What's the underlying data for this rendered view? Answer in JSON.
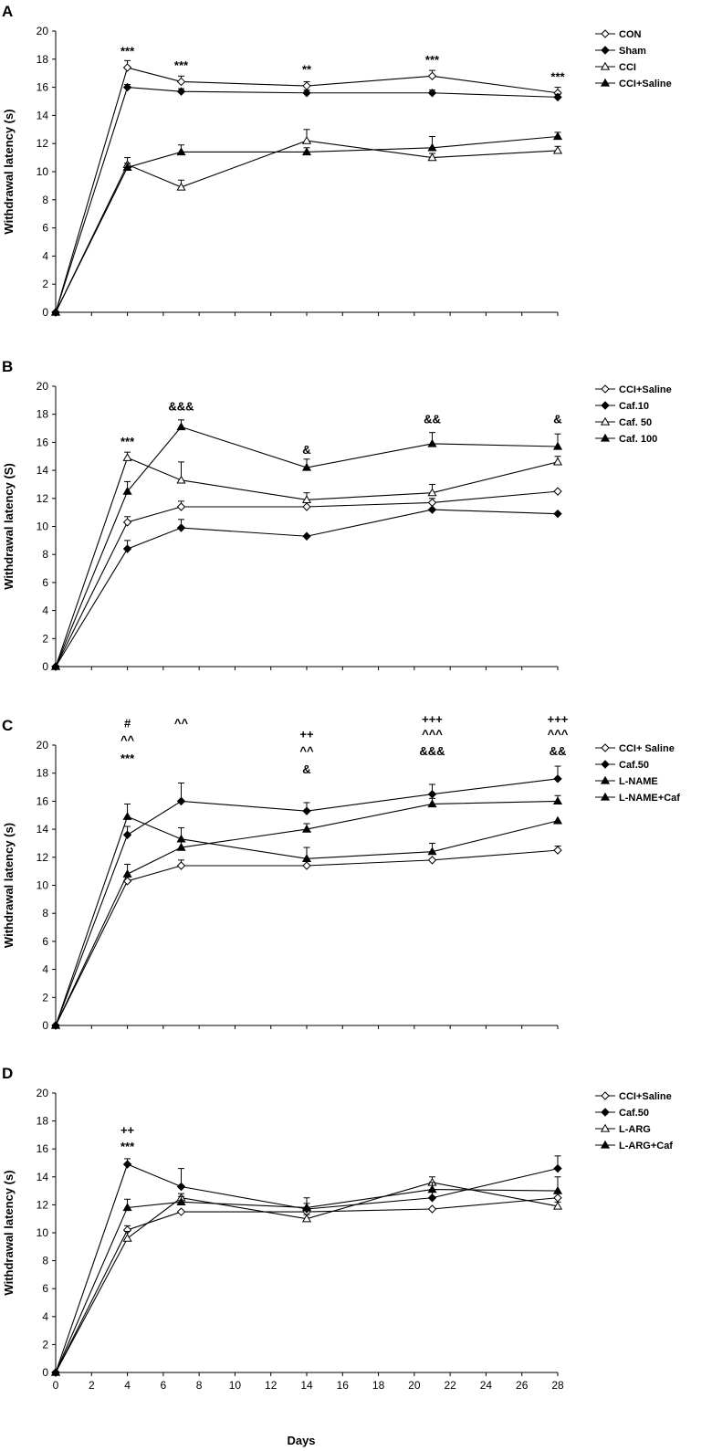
{
  "figure": {
    "xlabel": "Days"
  },
  "chart_data": [
    {
      "type": "line",
      "panel": "A",
      "ylabel": "Withdrawal latency (s)",
      "xlim": [
        0,
        28
      ],
      "ylim": [
        0,
        20
      ],
      "x": [
        0,
        4,
        7,
        14,
        21,
        28
      ],
      "series": [
        {
          "name": "CON",
          "marker": "diamond-open",
          "values": [
            0,
            17.4,
            16.4,
            16.1,
            16.8,
            15.6
          ],
          "errors": [
            0,
            0.5,
            0.4,
            0.3,
            0.4,
            0.4
          ]
        },
        {
          "name": "Sham",
          "marker": "diamond-filled",
          "values": [
            0,
            16.0,
            15.7,
            15.6,
            15.6,
            15.3
          ],
          "errors": [
            0,
            0.2,
            0.2,
            0.2,
            0.2,
            0.2
          ]
        },
        {
          "name": "CCI",
          "marker": "triangle-open",
          "values": [
            0,
            10.5,
            8.9,
            12.2,
            11.0,
            11.5
          ],
          "errors": [
            0,
            0.5,
            0.5,
            0.8,
            0.3,
            0.3
          ]
        },
        {
          "name": "CCI+Saline",
          "marker": "triangle-filled",
          "values": [
            0,
            10.3,
            11.4,
            11.4,
            11.7,
            12.5
          ],
          "errors": [
            0,
            0.3,
            0.5,
            0.3,
            0.8,
            0.3
          ]
        }
      ],
      "annotations": [
        {
          "x": 4,
          "y": 18.6,
          "text": "***"
        },
        {
          "x": 7,
          "y": 17.6,
          "text": "***"
        },
        {
          "x": 14,
          "y": 17.3,
          "text": "**"
        },
        {
          "x": 21,
          "y": 18.0,
          "text": "***"
        },
        {
          "x": 28,
          "y": 16.8,
          "text": "***"
        }
      ]
    },
    {
      "type": "line",
      "panel": "B",
      "ylabel": "Withdrawal latency (S)",
      "xlim": [
        0,
        28
      ],
      "ylim": [
        0,
        20
      ],
      "x": [
        0,
        4,
        7,
        14,
        21,
        28
      ],
      "series": [
        {
          "name": "CCI+Saline",
          "marker": "diamond-open",
          "values": [
            0,
            10.3,
            11.4,
            11.4,
            11.7,
            12.5
          ],
          "errors": [
            0,
            0.4,
            0.4,
            0.3,
            0.3,
            0
          ]
        },
        {
          "name": "Caf.10",
          "marker": "diamond-filled",
          "values": [
            0,
            8.4,
            9.9,
            9.3,
            11.2,
            10.9
          ],
          "errors": [
            0,
            0.6,
            0.6,
            0,
            0,
            0
          ]
        },
        {
          "name": "Caf. 50",
          "marker": "triangle-open",
          "values": [
            0,
            14.9,
            13.3,
            11.9,
            12.4,
            14.6
          ],
          "errors": [
            0,
            0.4,
            1.3,
            0.5,
            0.6,
            0.4
          ]
        },
        {
          "name": "Caf. 100",
          "marker": "triangle-filled",
          "values": [
            0,
            12.5,
            17.1,
            14.2,
            15.9,
            15.7
          ],
          "errors": [
            0,
            0.7,
            0.5,
            0.6,
            0.8,
            0.9
          ]
        }
      ],
      "annotations": [
        {
          "x": 4,
          "y": 16.1,
          "text": "***"
        },
        {
          "x": 7,
          "y": 18.6,
          "text": "&&&"
        },
        {
          "x": 14,
          "y": 15.5,
          "text": "&"
        },
        {
          "x": 21,
          "y": 17.7,
          "text": "&&"
        },
        {
          "x": 28,
          "y": 17.7,
          "text": "&"
        }
      ]
    },
    {
      "type": "line",
      "panel": "C",
      "ylabel": "Withdrawal latency (s)",
      "xlim": [
        0,
        28
      ],
      "ylim": [
        0,
        20
      ],
      "x": [
        0,
        4,
        7,
        14,
        21,
        28
      ],
      "series": [
        {
          "name": "CCI+ Saline",
          "marker": "diamond-open",
          "values": [
            0,
            10.3,
            11.4,
            11.4,
            11.8,
            12.5
          ],
          "errors": [
            0,
            0,
            0.4,
            0,
            0,
            0.3
          ]
        },
        {
          "name": "Caf.50",
          "marker": "diamond-filled",
          "values": [
            0,
            13.6,
            16.0,
            15.3,
            16.5,
            17.6
          ],
          "errors": [
            0,
            0.6,
            1.3,
            0.6,
            0.7,
            0.9
          ]
        },
        {
          "name": "L-NAME",
          "marker": "triangle-filled",
          "values": [
            0,
            14.9,
            13.3,
            11.9,
            12.4,
            14.6
          ],
          "errors": [
            0,
            0.9,
            0.8,
            0.8,
            0.6,
            0
          ]
        },
        {
          "name": "L-NAME+Caf",
          "marker": "triangle-filled",
          "values": [
            0,
            10.8,
            12.7,
            14.0,
            15.8,
            16.0
          ],
          "errors": [
            0,
            0.7,
            0.5,
            0.4,
            0.4,
            0.4
          ]
        }
      ],
      "annotations": [
        {
          "x": 4,
          "y": 19.1,
          "text": "***"
        },
        {
          "x": 4,
          "y": 20.4,
          "text": "^^"
        },
        {
          "x": 4,
          "y": 21.6,
          "text": "#"
        },
        {
          "x": 7,
          "y": 21.6,
          "text": "^^"
        },
        {
          "x": 14,
          "y": 18.3,
          "text": "&"
        },
        {
          "x": 14,
          "y": 19.6,
          "text": "^^"
        },
        {
          "x": 14,
          "y": 20.8,
          "text": "++"
        },
        {
          "x": 21,
          "y": 19.6,
          "text": "&&&"
        },
        {
          "x": 21,
          "y": 20.8,
          "text": "^^^"
        },
        {
          "x": 21,
          "y": 21.9,
          "text": "+++"
        },
        {
          "x": 28,
          "y": 19.6,
          "text": "&&"
        },
        {
          "x": 28,
          "y": 20.8,
          "text": "^^^"
        },
        {
          "x": 28,
          "y": 21.9,
          "text": "+++"
        }
      ]
    },
    {
      "type": "line",
      "panel": "D",
      "ylabel": "Withdrawal latency (s)",
      "xlim": [
        0,
        28
      ],
      "ylim": [
        0,
        20
      ],
      "x": [
        0,
        4,
        7,
        14,
        21,
        28
      ],
      "xticks": [
        0,
        2,
        4,
        6,
        8,
        10,
        12,
        14,
        16,
        18,
        20,
        22,
        24,
        26,
        28
      ],
      "series": [
        {
          "name": "CCI+Saline",
          "marker": "diamond-open",
          "values": [
            0,
            10.2,
            11.5,
            11.5,
            11.7,
            12.5
          ],
          "errors": [
            0,
            0.3,
            0,
            0,
            0,
            0
          ]
        },
        {
          "name": "Caf.50",
          "marker": "diamond-filled",
          "values": [
            0,
            14.9,
            13.3,
            11.7,
            12.5,
            14.6
          ],
          "errors": [
            0,
            0.4,
            1.3,
            0.4,
            0.6,
            0.9
          ]
        },
        {
          "name": "L-ARG",
          "marker": "triangle-open",
          "values": [
            0,
            9.6,
            12.5,
            11.0,
            13.6,
            11.9
          ],
          "errors": [
            0,
            0.5,
            0.3,
            0.3,
            0.4,
            0.3
          ]
        },
        {
          "name": "L-ARG+Caf",
          "marker": "triangle-filled",
          "values": [
            0,
            11.8,
            12.2,
            11.8,
            13.1,
            13.0
          ],
          "errors": [
            0,
            0.6,
            0.4,
            0.7,
            0.5,
            1.0
          ]
        }
      ],
      "annotations": [
        {
          "x": 4,
          "y": 16.2,
          "text": "***"
        },
        {
          "x": 4,
          "y": 17.4,
          "text": "++"
        }
      ]
    }
  ]
}
